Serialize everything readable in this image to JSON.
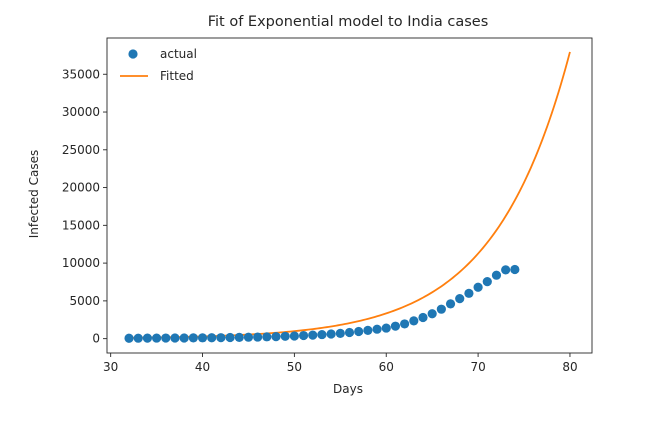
{
  "chart_data": {
    "type": "scatter",
    "title": "Fit of Exponential model to India cases",
    "xlabel": "Days",
    "ylabel": "Infected Cases",
    "xlim": [
      29.6,
      82.4
    ],
    "ylim": [
      -1900,
      39800
    ],
    "xticks": [
      30,
      40,
      50,
      60,
      70,
      80
    ],
    "yticks": [
      0,
      5000,
      10000,
      15000,
      20000,
      25000,
      30000,
      35000
    ],
    "grid": false,
    "legend": "top-left",
    "series": [
      {
        "name": "actual",
        "kind": "scatter",
        "color": "#1f77b4",
        "x": [
          32,
          33,
          34,
          35,
          36,
          37,
          38,
          39,
          40,
          41,
          42,
          43,
          44,
          45,
          46,
          47,
          48,
          49,
          50,
          51,
          52,
          53,
          54,
          55,
          56,
          57,
          58,
          59,
          60,
          61,
          62,
          63,
          64,
          65,
          66,
          67,
          68,
          69,
          70,
          71,
          72,
          73,
          74
        ],
        "y": [
          50,
          60,
          70,
          75,
          80,
          85,
          90,
          100,
          110,
          120,
          130,
          150,
          170,
          190,
          210,
          240,
          270,
          310,
          350,
          410,
          470,
          540,
          620,
          700,
          810,
          950,
          1100,
          1250,
          1400,
          1650,
          1950,
          2350,
          2800,
          3300,
          3900,
          4600,
          5300,
          6000,
          6800,
          7550,
          8400,
          9100,
          9150
        ]
      },
      {
        "name": "Fitted",
        "kind": "line",
        "color": "#ff7f0e",
        "fit": {
          "a": 2.28,
          "b": 0.1215
        },
        "x_range": [
          32,
          80
        ]
      }
    ]
  }
}
